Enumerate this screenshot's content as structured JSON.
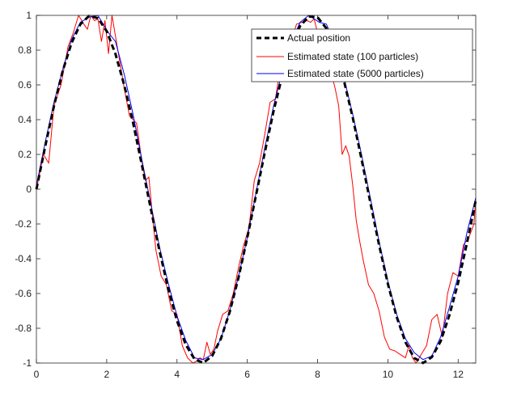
{
  "chart_data": {
    "type": "line",
    "title": "",
    "xlabel": "",
    "ylabel": "",
    "xlim": [
      0,
      12.5
    ],
    "ylim": [
      -1,
      1
    ],
    "xticks": [
      0,
      2,
      4,
      6,
      8,
      10,
      12
    ],
    "yticks": [
      1,
      0.8,
      0.6,
      0.4,
      0.2,
      0,
      -0.2,
      -0.4,
      -0.6,
      -0.8,
      -1
    ],
    "xtick_labels": [
      "0",
      "2",
      "4",
      "6",
      "8",
      "10",
      "12"
    ],
    "ytick_labels": [
      "1",
      "0.8",
      "0.6",
      "0.4",
      "0.2",
      "0",
      "-0.2",
      "-0.4",
      "-0.6",
      "-0.8",
      "-1"
    ],
    "grid": false,
    "legend_position": "top-right",
    "series": [
      {
        "name": "Actual position",
        "color": "#000000",
        "style": "dashed",
        "x": [
          0,
          0.25,
          0.5,
          0.75,
          1,
          1.25,
          1.5,
          1.75,
          2,
          2.25,
          2.5,
          2.75,
          3,
          3.25,
          3.5,
          3.75,
          4,
          4.25,
          4.5,
          4.75,
          5,
          5.25,
          5.5,
          5.75,
          6,
          6.25,
          6.5,
          6.75,
          7,
          7.25,
          7.5,
          7.75,
          8,
          8.25,
          8.5,
          8.75,
          9,
          9.25,
          9.5,
          9.75,
          10,
          10.25,
          10.5,
          10.75,
          11,
          11.25,
          11.5,
          11.75,
          12,
          12.25,
          12.5
        ],
        "y": [
          0,
          0.247,
          0.479,
          0.682,
          0.841,
          0.949,
          0.997,
          0.984,
          0.909,
          0.778,
          0.598,
          0.382,
          0.141,
          -0.108,
          -0.351,
          -0.572,
          -0.757,
          -0.895,
          -0.978,
          -0.999,
          -0.959,
          -0.859,
          -0.706,
          -0.508,
          -0.279,
          -0.033,
          0.215,
          0.451,
          0.657,
          0.823,
          0.938,
          0.994,
          0.989,
          0.925,
          0.798,
          0.624,
          0.412,
          0.174,
          -0.075,
          -0.32,
          -0.544,
          -0.735,
          -0.88,
          -0.971,
          -1,
          -0.966,
          -0.875,
          -0.725,
          -0.537,
          -0.31,
          -0.066
        ]
      },
      {
        "name": "Estimated state (100 particles)",
        "color": "#ff0000",
        "style": "solid",
        "x": [
          0,
          0.2,
          0.35,
          0.5,
          0.7,
          0.9,
          1.05,
          1.2,
          1.35,
          1.45,
          1.55,
          1.65,
          1.75,
          1.85,
          1.95,
          2.05,
          2.15,
          2.3,
          2.5,
          2.65,
          2.75,
          2.85,
          3,
          3.1,
          3.2,
          3.3,
          3.4,
          3.55,
          3.7,
          3.85,
          4,
          4.15,
          4.3,
          4.45,
          4.55,
          4.65,
          4.75,
          4.85,
          4.95,
          5.05,
          5.15,
          5.3,
          5.45,
          5.6,
          5.75,
          5.9,
          6.05,
          6.2,
          6.35,
          6.5,
          6.65,
          6.8,
          6.95,
          7.1,
          7.25,
          7.4,
          7.55,
          7.7,
          7.8,
          7.9,
          8,
          8.1,
          8.2,
          8.35,
          8.5,
          8.6,
          8.7,
          8.8,
          8.9,
          9.0,
          9.1,
          9.2,
          9.3,
          9.45,
          9.6,
          9.75,
          9.9,
          10.05,
          10.2,
          10.35,
          10.5,
          10.6,
          10.7,
          10.8,
          10.95,
          11.1,
          11.25,
          11.4,
          11.55,
          11.7,
          11.85,
          12,
          12.15,
          12.3,
          12.45,
          12.5
        ],
        "y": [
          0,
          0.2,
          0.15,
          0.48,
          0.6,
          0.82,
          0.9,
          1.0,
          0.95,
          0.92,
          1.0,
          0.97,
          0.98,
          0.85,
          0.97,
          0.78,
          1.0,
          0.82,
          0.58,
          0.42,
          0.4,
          0.38,
          0.16,
          0.05,
          0.07,
          -0.15,
          -0.35,
          -0.5,
          -0.55,
          -0.7,
          -0.72,
          -0.9,
          -0.97,
          -1.0,
          -0.99,
          -0.97,
          -0.98,
          -0.88,
          -0.95,
          -0.92,
          -0.82,
          -0.72,
          -0.7,
          -0.6,
          -0.45,
          -0.32,
          -0.22,
          0.05,
          0.15,
          0.32,
          0.5,
          0.52,
          0.71,
          0.71,
          0.85,
          0.95,
          0.96,
          0.97,
          0.96,
          0.98,
          0.9,
          0.78,
          0.73,
          0.7,
          0.58,
          0.48,
          0.2,
          0.25,
          0.19,
          0.02,
          -0.18,
          -0.3,
          -0.41,
          -0.55,
          -0.6,
          -0.7,
          -0.85,
          -0.92,
          -0.93,
          -0.95,
          -0.97,
          -0.9,
          -0.97,
          -1.0,
          -0.95,
          -0.9,
          -0.75,
          -0.72,
          -0.85,
          -0.6,
          -0.48,
          -0.5,
          -0.32,
          -0.28,
          -0.2,
          -0.05
        ]
      },
      {
        "name": "Estimated state (5000 particles)",
        "color": "#0000ff",
        "style": "solid",
        "x": [
          0,
          0.25,
          0.5,
          0.75,
          1,
          1.25,
          1.5,
          1.75,
          1.9,
          2.05,
          2.25,
          2.5,
          2.75,
          3,
          3.25,
          3.5,
          3.75,
          4,
          4.25,
          4.5,
          4.75,
          5,
          5.25,
          5.5,
          5.75,
          6,
          6.25,
          6.5,
          6.75,
          7,
          7.25,
          7.5,
          7.75,
          7.9,
          8.05,
          8.25,
          8.5,
          8.75,
          9,
          9.25,
          9.5,
          9.75,
          10,
          10.25,
          10.5,
          10.75,
          11,
          11.25,
          11.5,
          11.75,
          12,
          12.25,
          12.5
        ],
        "y": [
          0.02,
          0.27,
          0.5,
          0.69,
          0.86,
          0.96,
          0.99,
          1.0,
          0.95,
          0.9,
          0.85,
          0.66,
          0.43,
          0.17,
          -0.08,
          -0.33,
          -0.54,
          -0.73,
          -0.87,
          -0.97,
          -0.98,
          -0.95,
          -0.86,
          -0.7,
          -0.5,
          -0.28,
          -0.02,
          0.24,
          0.48,
          0.68,
          0.84,
          0.96,
          1.0,
          0.98,
          0.96,
          0.95,
          0.83,
          0.64,
          0.43,
          0.2,
          -0.05,
          -0.3,
          -0.53,
          -0.72,
          -0.86,
          -0.94,
          -0.98,
          -0.96,
          -0.85,
          -0.68,
          -0.5,
          -0.25,
          -0.05
        ]
      }
    ]
  }
}
